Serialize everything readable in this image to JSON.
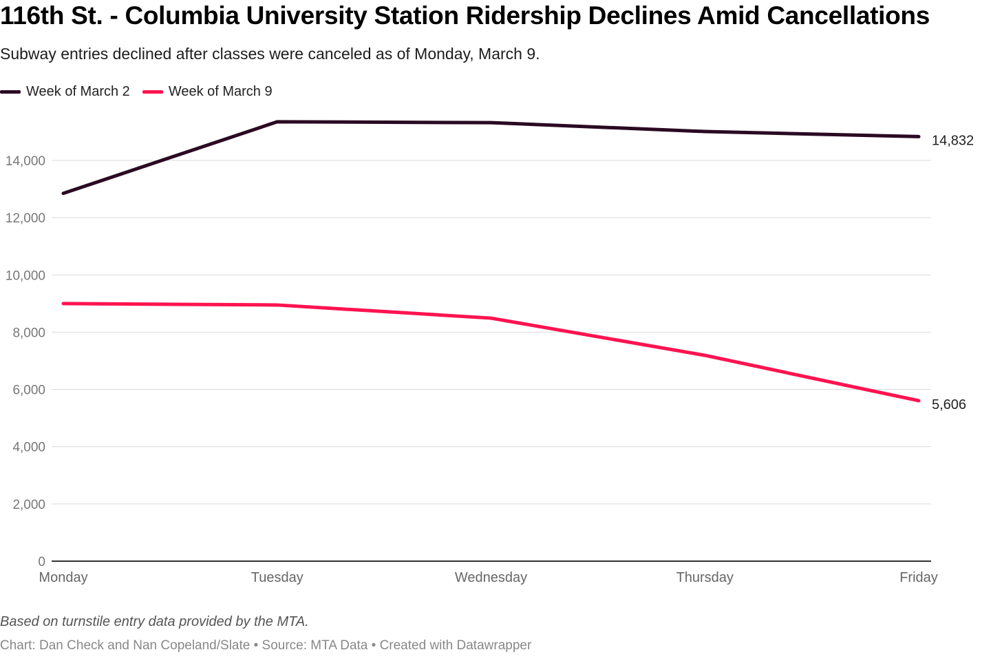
{
  "title": "116th St. - Columbia University Station Ridership Declines Amid Cancellations",
  "subtitle": "Subway entries declined after classes were canceled as of Monday, March 9.",
  "notes": "Based on turnstile entry data provided by the MTA.",
  "credit": "Chart: Dan Check and Nan Copeland/Slate • Source: MTA Data • Created with Datawrapper",
  "chart_data": {
    "type": "line",
    "categories": [
      "Monday",
      "Tuesday",
      "Wednesday",
      "Thursday",
      "Friday"
    ],
    "series": [
      {
        "name": "Week of March 2",
        "color": "#2a0a22",
        "values": [
          12850,
          15350,
          15320,
          15010,
          14832
        ],
        "end_label": "14,832"
      },
      {
        "name": "Week of March 9",
        "color": "#ff1350",
        "values": [
          9000,
          8950,
          8490,
          7190,
          5606
        ],
        "end_label": "5,606"
      }
    ],
    "ylim": [
      0,
      16000
    ],
    "yticks": [
      0,
      2000,
      4000,
      6000,
      8000,
      10000,
      12000,
      14000
    ],
    "ytick_labels": [
      "0",
      "2,000",
      "4,000",
      "6,000",
      "8,000",
      "10,000",
      "12,000",
      "14,000"
    ],
    "grid": true,
    "legend": "top-left"
  }
}
